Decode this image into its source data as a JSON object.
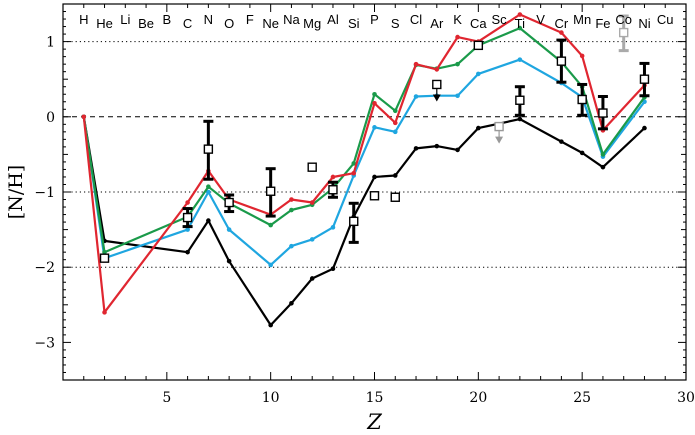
{
  "chart_data": {
    "type": "line",
    "title": "",
    "xlabel": "Z",
    "ylabel": "[N/H]",
    "xlim": [
      0,
      30
    ],
    "ylim": [
      -3.5,
      1.5
    ],
    "xticks": [
      5,
      10,
      15,
      20,
      25,
      30
    ],
    "yticks": [
      -3,
      -2,
      -1,
      0,
      1
    ],
    "xtick_labels": [
      "5",
      "10",
      "15",
      "20",
      "25",
      "30"
    ],
    "ytick_labels": [
      "−3",
      "−2",
      "−1",
      "0",
      "1"
    ],
    "reference_lines": [
      {
        "y": 1,
        "style": "dotted"
      },
      {
        "y": 0,
        "style": "dashed"
      },
      {
        "y": -1,
        "style": "dotted"
      },
      {
        "y": -2,
        "style": "dotted"
      }
    ],
    "element_labels": [
      {
        "z": 1,
        "symbol": "H"
      },
      {
        "z": 2,
        "symbol": "He"
      },
      {
        "z": 3,
        "symbol": "Li"
      },
      {
        "z": 4,
        "symbol": "Be"
      },
      {
        "z": 5,
        "symbol": "B"
      },
      {
        "z": 6,
        "symbol": "C"
      },
      {
        "z": 7,
        "symbol": "N"
      },
      {
        "z": 8,
        "symbol": "O"
      },
      {
        "z": 9,
        "symbol": "F"
      },
      {
        "z": 10,
        "symbol": "Ne"
      },
      {
        "z": 11,
        "symbol": "Na"
      },
      {
        "z": 12,
        "symbol": "Mg"
      },
      {
        "z": 13,
        "symbol": "Al"
      },
      {
        "z": 14,
        "symbol": "Si"
      },
      {
        "z": 15,
        "symbol": "P"
      },
      {
        "z": 16,
        "symbol": "S"
      },
      {
        "z": 17,
        "symbol": "Cl"
      },
      {
        "z": 18,
        "symbol": "Ar"
      },
      {
        "z": 19,
        "symbol": "K"
      },
      {
        "z": 20,
        "symbol": "Ca"
      },
      {
        "z": 21,
        "symbol": "Sc"
      },
      {
        "z": 22,
        "symbol": "Ti"
      },
      {
        "z": 23,
        "symbol": "V"
      },
      {
        "z": 24,
        "symbol": "Cr"
      },
      {
        "z": 25,
        "symbol": "Mn"
      },
      {
        "z": 26,
        "symbol": "Fe"
      },
      {
        "z": 27,
        "symbol": "Co"
      },
      {
        "z": 28,
        "symbol": "Ni"
      },
      {
        "z": 29,
        "symbol": "Cu"
      }
    ],
    "series": [
      {
        "name": "black model",
        "color": "#000000",
        "x": [
          1,
          2,
          6,
          7,
          8,
          10,
          11,
          12,
          13,
          14,
          15,
          16,
          17,
          18,
          19,
          20,
          22,
          24,
          25,
          26,
          28
        ],
        "y": [
          0,
          -1.65,
          -1.8,
          -1.38,
          -1.92,
          -2.77,
          -2.48,
          -2.15,
          -2.02,
          -1.33,
          -0.8,
          -0.78,
          -0.42,
          -0.39,
          -0.44,
          -0.15,
          -0.03,
          -0.33,
          -0.48,
          -0.67,
          -0.15
        ]
      },
      {
        "name": "blue model",
        "color": "#1fa6e0",
        "x": [
          1,
          2,
          6,
          7,
          8,
          10,
          11,
          12,
          13,
          14,
          15,
          16,
          17,
          18,
          19,
          20,
          22,
          24,
          25,
          26,
          28
        ],
        "y": [
          0,
          -1.88,
          -1.5,
          -1.0,
          -1.5,
          -1.97,
          -1.72,
          -1.63,
          -1.47,
          -0.78,
          -0.14,
          -0.2,
          0.27,
          0.28,
          0.28,
          0.57,
          0.76,
          0.45,
          0.26,
          -0.53,
          0.2
        ]
      },
      {
        "name": "green model",
        "color": "#1a9a4a",
        "x": [
          1,
          2,
          6,
          7,
          8,
          10,
          11,
          12,
          13,
          14,
          15,
          16,
          17,
          18,
          19,
          20,
          22,
          24,
          25,
          26,
          28
        ],
        "y": [
          0,
          -1.8,
          -1.33,
          -0.93,
          -1.15,
          -1.44,
          -1.24,
          -1.17,
          -0.95,
          -0.62,
          0.3,
          0.08,
          0.69,
          0.64,
          0.7,
          0.95,
          1.18,
          0.73,
          0.4,
          -0.5,
          0.26
        ]
      },
      {
        "name": "red model",
        "color": "#e02630",
        "x": [
          1,
          2,
          6,
          7,
          8,
          10,
          11,
          12,
          13,
          14,
          15,
          16,
          17,
          18,
          19,
          20,
          22,
          24,
          25,
          26,
          28
        ],
        "y": [
          0,
          -2.6,
          -1.14,
          -0.72,
          -1.1,
          -1.3,
          -1.1,
          -1.14,
          -0.8,
          -0.75,
          0.18,
          -0.08,
          0.7,
          0.63,
          1.06,
          1.0,
          1.36,
          1.12,
          0.81,
          -0.18,
          0.42
        ]
      }
    ],
    "observations": [
      {
        "z": 2,
        "y": -1.88,
        "err_lo": 0,
        "err_hi": 0,
        "color": "#000000"
      },
      {
        "z": 6,
        "y": -1.34,
        "err_lo": 0.12,
        "err_hi": 0.12,
        "color": "#000000"
      },
      {
        "z": 7,
        "y": -0.43,
        "err_lo": 0.4,
        "err_hi": 0.37,
        "color": "#000000"
      },
      {
        "z": 8,
        "y": -1.14,
        "err_lo": 0.12,
        "err_hi": 0.1,
        "color": "#000000"
      },
      {
        "z": 10,
        "y": -0.99,
        "err_lo": 0.33,
        "err_hi": 0.3,
        "color": "#000000"
      },
      {
        "z": 12,
        "y": -0.67,
        "err_lo": 0,
        "err_hi": 0,
        "color": "#000000"
      },
      {
        "z": 13,
        "y": -0.97,
        "err_lo": 0.1,
        "err_hi": 0.1,
        "color": "#000000"
      },
      {
        "z": 14,
        "y": -1.39,
        "err_lo": 0.28,
        "err_hi": 0.24,
        "color": "#000000"
      },
      {
        "z": 15,
        "y": -1.05,
        "err_lo": 0,
        "err_hi": 0,
        "color": "#000000"
      },
      {
        "z": 16,
        "y": -1.07,
        "err_lo": 0,
        "err_hi": 0,
        "color": "#000000"
      },
      {
        "z": 18,
        "y": 0.43,
        "err_lo": 0,
        "err_hi": 0,
        "color": "#000000",
        "upper_limit": true
      },
      {
        "z": 20,
        "y": 0.95,
        "err_lo": 0,
        "err_hi": 0,
        "color": "#000000"
      },
      {
        "z": 21,
        "y": -0.13,
        "err_lo": 0,
        "err_hi": 0,
        "color": "#999999",
        "upper_limit": true
      },
      {
        "z": 22,
        "y": 0.22,
        "err_lo": 0.2,
        "err_hi": 0.18,
        "color": "#000000"
      },
      {
        "z": 24,
        "y": 0.74,
        "err_lo": 0.28,
        "err_hi": 0.28,
        "color": "#000000"
      },
      {
        "z": 25,
        "y": 0.23,
        "err_lo": 0.21,
        "err_hi": 0.2,
        "color": "#000000"
      },
      {
        "z": 26,
        "y": 0.05,
        "err_lo": 0.21,
        "err_hi": 0.22,
        "color": "#000000"
      },
      {
        "z": 27,
        "y": 1.12,
        "err_lo": 0.24,
        "err_hi": 0.22,
        "color": "#aaaaaa"
      },
      {
        "z": 28,
        "y": 0.5,
        "err_lo": 0.22,
        "err_hi": 0.21,
        "color": "#000000"
      }
    ]
  }
}
